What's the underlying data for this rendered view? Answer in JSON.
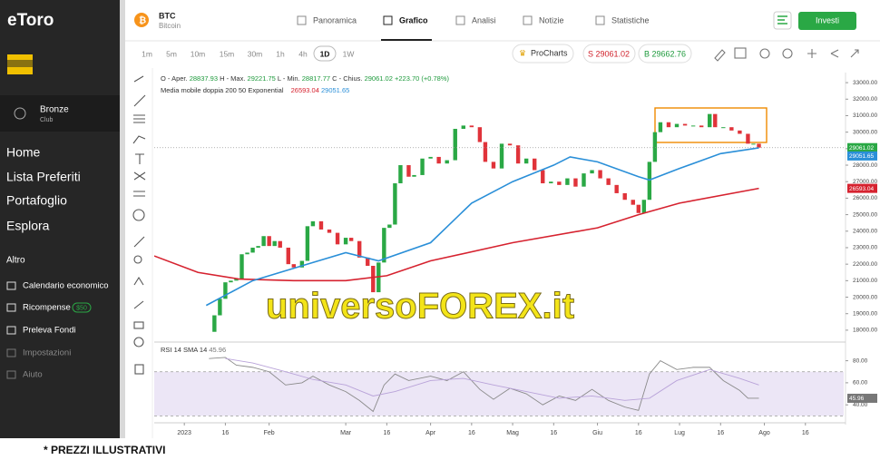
{
  "app": {
    "logo": "eToro",
    "user": {
      "tier": "Bronze",
      "club": "Club"
    },
    "nav": [
      "Home",
      "Lista Preferiti",
      "Portafoglio",
      "Esplora"
    ],
    "more": "Altro",
    "menu": [
      {
        "label": "Calendario economico"
      },
      {
        "label": "Ricompense",
        "badge": "$50"
      },
      {
        "label": "Preleva Fondi"
      },
      {
        "label": "Impostazioni"
      },
      {
        "label": "Aiuto"
      }
    ]
  },
  "instrument": {
    "symbol": "BTC",
    "name": "Bitcoin"
  },
  "tabs": [
    "Panoramica",
    "Grafico",
    "Analisi",
    "Notizie",
    "Statistiche"
  ],
  "invest": "Investi",
  "timeframes": [
    "1m",
    "5m",
    "10m",
    "15m",
    "30m",
    "1h",
    "4h",
    "1D",
    "1W"
  ],
  "procharts": "ProCharts",
  "sell": "S 29061.02",
  "buy": "B 29662.76",
  "ohlc": [
    {
      "label": "O - Aper.",
      "value": "28837.93"
    },
    {
      "label": "H - Max.",
      "value": "29221.75"
    },
    {
      "label": "L - Min.",
      "value": "28817.77"
    },
    {
      "label": "C - Chius.",
      "value": "29061.02"
    }
  ],
  "change": "+223.70 (+0.78%)",
  "indicator": "Media mobile doppia 200 50 Exponential",
  "rsi_label": "RSI 14 SMA 14",
  "watermark": "universoFOREX.it",
  "footer": "* PREZZI ILLUSTRATIVI",
  "chart_data": [
    {
      "type": "line",
      "xlim": [
        -11,
        241
      ],
      "ylim": [
        17500,
        33500
      ],
      "grid": false,
      "yticks": [
        {
          "value": 18000,
          "label": "18000.00"
        },
        {
          "value": 19000,
          "label": "19000.00"
        },
        {
          "value": 20000,
          "label": "20000.00"
        },
        {
          "value": 21000,
          "label": "21000.00"
        },
        {
          "value": 22000,
          "label": "22000.00"
        },
        {
          "value": 23000,
          "label": "23000.00"
        },
        {
          "value": 24000,
          "label": "24000.00"
        },
        {
          "value": 25000,
          "label": "25000.00"
        },
        {
          "value": 26000,
          "label": "26000.00"
        },
        {
          "value": 27000,
          "label": "27000.00"
        },
        {
          "value": 28000,
          "label": "28000.00"
        },
        {
          "value": 29000,
          "label": "29000.00"
        },
        {
          "value": 30000,
          "label": "30000.00"
        },
        {
          "value": 31000,
          "label": "31000.00"
        },
        {
          "value": 32000,
          "label": "32000.00"
        },
        {
          "value": 33000,
          "label": "33000.00"
        }
      ],
      "series": [
        {
          "style": "bars",
          "up_color": "#2aa845",
          "down_color": "#e0333a",
          "color": "#2aa845",
          "x": [
            9,
            11,
            13,
            15,
            17,
            19,
            21,
            23,
            25,
            27,
            29,
            31,
            33,
            35,
            38,
            40,
            43,
            45,
            47,
            50,
            53,
            56,
            59,
            61,
            64,
            67,
            69,
            71,
            73,
            75,
            77,
            79,
            82,
            84,
            87,
            90,
            93,
            96,
            99,
            102,
            105,
            108,
            110,
            113,
            116,
            119,
            122,
            125,
            128,
            131,
            134,
            137,
            140,
            143,
            146,
            149,
            152,
            155,
            158,
            161,
            164,
            166,
            168,
            170,
            172,
            174,
            177,
            180,
            183,
            186,
            189,
            192,
            194,
            197,
            200,
            203,
            206,
            208,
            210
          ],
          "values": [
            17900,
            18900,
            19900,
            20900,
            21000,
            21100,
            22600,
            22700,
            23000,
            23100,
            23700,
            23100,
            23400,
            23000,
            22000,
            21800,
            22200,
            24300,
            24600,
            24100,
            23900,
            23200,
            23600,
            23400,
            22400,
            21900,
            20300,
            22100,
            24200,
            24400,
            26900,
            28000,
            27300,
            27400,
            28400,
            28500,
            28100,
            28300,
            30200,
            30400,
            30300,
            29400,
            28200,
            27800,
            29300,
            29200,
            28100,
            28400,
            27700,
            26900,
            27000,
            26800,
            27200,
            26700,
            27500,
            27700,
            27200,
            26800,
            26300,
            25900,
            25600,
            25100,
            25900,
            28200,
            30000,
            30600,
            30300,
            30500,
            30400,
            30400,
            30300,
            31100,
            30300,
            30300,
            30100,
            29900,
            29300,
            29300,
            29061.02
          ]
        },
        {
          "color": "#d6222f",
          "x": [
            -11,
            5,
            20,
            40,
            59,
            74,
            90,
            120,
            151,
            166,
            181,
            210
          ],
          "values": [
            22500,
            21500,
            21100,
            21000,
            21000,
            21300,
            22200,
            23300,
            24200,
            25000,
            25700,
            26593.04
          ]
        },
        {
          "color": "#2a8fd8",
          "x": [
            8,
            25,
            45,
            59,
            71,
            90,
            105,
            120,
            135,
            141,
            151,
            166,
            170,
            181,
            196,
            210
          ],
          "values": [
            19500,
            21000,
            22000,
            22700,
            22200,
            23300,
            25700,
            27000,
            28000,
            28500,
            28200,
            27300,
            27100,
            27800,
            28700,
            29051.65
          ]
        }
      ]
    },
    {
      "type": "line",
      "xlim": [
        -11,
        241
      ],
      "ylim": [
        27,
        92
      ],
      "bands": [
        30,
        70
      ],
      "yticks": [
        {
          "value": 40,
          "label": "40.00"
        },
        {
          "value": 60,
          "label": "60.00"
        },
        {
          "value": 80,
          "label": "80.00"
        }
      ],
      "xticks": [
        {
          "value": 0,
          "label": "2023"
        },
        {
          "value": 15,
          "label": "16"
        },
        {
          "value": 31,
          "label": "Feb"
        },
        {
          "value": 59,
          "label": "Mar"
        },
        {
          "value": 74,
          "label": "16"
        },
        {
          "value": 90,
          "label": "Apr"
        },
        {
          "value": 105,
          "label": "16"
        },
        {
          "value": 120,
          "label": "Mag"
        },
        {
          "value": 135,
          "label": "16"
        },
        {
          "value": 151,
          "label": "Giu"
        },
        {
          "value": 166,
          "label": "16"
        },
        {
          "value": 181,
          "label": "Lug"
        },
        {
          "value": 196,
          "label": "16"
        },
        {
          "value": 212,
          "label": "Ago"
        },
        {
          "value": 227,
          "label": "16"
        }
      ],
      "series": [
        {
          "color": "#8a8a8a",
          "x": [
            9,
            15,
            19,
            25,
            31,
            37,
            43,
            47,
            53,
            59,
            64,
            69,
            73,
            77,
            82,
            90,
            96,
            102,
            108,
            113,
            119,
            125,
            131,
            137,
            143,
            149,
            155,
            161,
            166,
            170,
            174,
            180,
            186,
            192,
            197,
            203,
            206,
            210
          ],
          "values": [
            82,
            83,
            76,
            74,
            70,
            58,
            60,
            66,
            58,
            52,
            44,
            34,
            58,
            68,
            62,
            66,
            62,
            70,
            54,
            45,
            55,
            50,
            40,
            48,
            44,
            54,
            44,
            38,
            35,
            68,
            80,
            72,
            74,
            74,
            62,
            53,
            46,
            45.96
          ]
        },
        {
          "color": "#b9a3d9",
          "x": [
            15,
            25,
            37,
            47,
            59,
            69,
            77,
            90,
            102,
            113,
            125,
            137,
            149,
            161,
            170,
            180,
            192,
            203,
            210
          ],
          "values": [
            82,
            78,
            70,
            63,
            58,
            48,
            52,
            62,
            64,
            58,
            52,
            46,
            48,
            44,
            46,
            62,
            72,
            64,
            58
          ]
        }
      ]
    }
  ]
}
